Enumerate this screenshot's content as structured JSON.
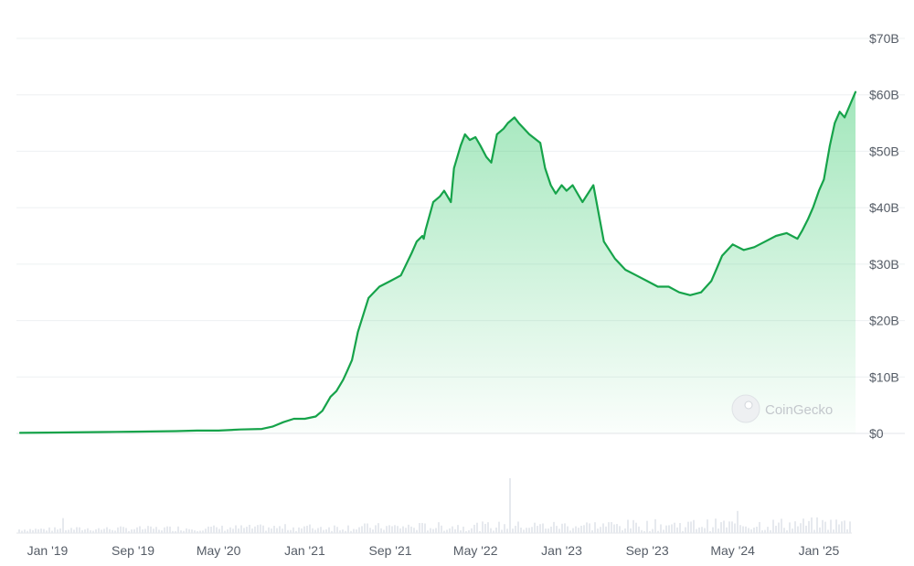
{
  "chart_data": {
    "type": "area",
    "title": "",
    "xlabel": "",
    "ylabel": "",
    "y_tick_labels": [
      "$0",
      "$10B",
      "$20B",
      "$30B",
      "$40B",
      "$50B",
      "$60B",
      "$70B"
    ],
    "x_tick_labels": [
      "Jan '19",
      "Sep '19",
      "May '20",
      "Jan '21",
      "Sep '21",
      "May '22",
      "Jan '23",
      "Sep '23",
      "May '24",
      "Jan '25"
    ],
    "x_tick_dates": [
      "2019-01-01",
      "2019-09-01",
      "2020-05-01",
      "2021-01-01",
      "2021-09-01",
      "2022-05-01",
      "2023-01-01",
      "2023-09-01",
      "2024-05-01",
      "2025-01-01"
    ],
    "ylim": [
      0,
      70
    ],
    "y_unit": "billion USD",
    "grid": true,
    "line_color": "#16a34a",
    "fill_color": "#22c55e",
    "watermark": "CoinGecko",
    "series": [
      {
        "x": [
          "2018-10-15",
          "2019-01-01",
          "2019-06-01",
          "2019-09-01",
          "2020-01-01",
          "2020-03-01",
          "2020-05-01",
          "2020-07-01",
          "2020-09-01",
          "2020-10-01",
          "2020-11-01",
          "2020-12-01",
          "2021-01-01",
          "2021-02-01",
          "2021-02-20",
          "2021-03-15",
          "2021-04-01",
          "2021-04-20",
          "2021-05-01",
          "2021-05-15",
          "2021-06-01",
          "2021-07-01",
          "2021-08-01",
          "2021-09-01",
          "2021-10-01",
          "2021-11-01",
          "2021-11-15",
          "2021-12-01",
          "2021-12-05",
          "2021-12-10",
          "2022-01-01",
          "2022-01-20",
          "2022-02-01",
          "2022-02-20",
          "2022-03-01",
          "2022-03-20",
          "2022-04-01",
          "2022-04-15",
          "2022-05-01",
          "2022-05-15",
          "2022-06-01",
          "2022-06-15",
          "2022-07-01",
          "2022-07-20",
          "2022-08-01",
          "2022-08-20",
          "2022-09-01",
          "2022-10-01",
          "2022-11-01",
          "2022-11-15",
          "2022-12-01",
          "2022-12-15",
          "2023-01-01",
          "2023-01-15",
          "2023-02-01",
          "2023-03-01",
          "2023-04-01",
          "2023-05-01",
          "2023-06-01",
          "2023-07-01",
          "2023-08-01",
          "2023-09-01",
          "2023-10-01",
          "2023-11-01",
          "2023-12-01",
          "2024-01-01",
          "2024-02-01",
          "2024-03-01",
          "2024-03-15",
          "2024-04-01",
          "2024-05-01",
          "2024-06-01",
          "2024-07-01",
          "2024-08-01",
          "2024-09-01",
          "2024-10-01",
          "2024-11-01",
          "2024-11-15",
          "2024-12-01",
          "2024-12-15",
          "2025-01-01",
          "2025-01-15",
          "2025-02-01",
          "2025-02-15",
          "2025-03-01",
          "2025-03-15",
          "2025-04-01",
          "2025-04-15"
        ],
        "values": [
          0.1,
          0.15,
          0.25,
          0.3,
          0.4,
          0.5,
          0.5,
          0.7,
          0.8,
          1.2,
          2.0,
          2.6,
          2.6,
          3.0,
          4.0,
          6.5,
          7.5,
          9.5,
          11.0,
          13.0,
          18.0,
          24.0,
          26.0,
          27.0,
          28.0,
          32.0,
          34.0,
          35.0,
          34.5,
          36.0,
          41.0,
          42.0,
          43.0,
          41.0,
          47.0,
          51.0,
          53.0,
          52.0,
          52.5,
          51.0,
          49.0,
          48.0,
          53.0,
          54.0,
          55.0,
          56.0,
          55.0,
          53.0,
          51.5,
          47.0,
          44.0,
          42.5,
          44.0,
          43.0,
          44.0,
          41.0,
          44.0,
          34.0,
          31.0,
          29.0,
          28.0,
          27.0,
          26.0,
          26.0,
          25.0,
          24.5,
          25.0,
          27.0,
          29.0,
          31.5,
          33.5,
          32.5,
          33.0,
          34.0,
          35.0,
          35.5,
          34.5,
          36.0,
          38.0,
          40.0,
          43.0,
          45.0,
          51.0,
          55.0,
          57.0,
          56.0,
          58.5,
          60.5
        ]
      }
    ]
  }
}
